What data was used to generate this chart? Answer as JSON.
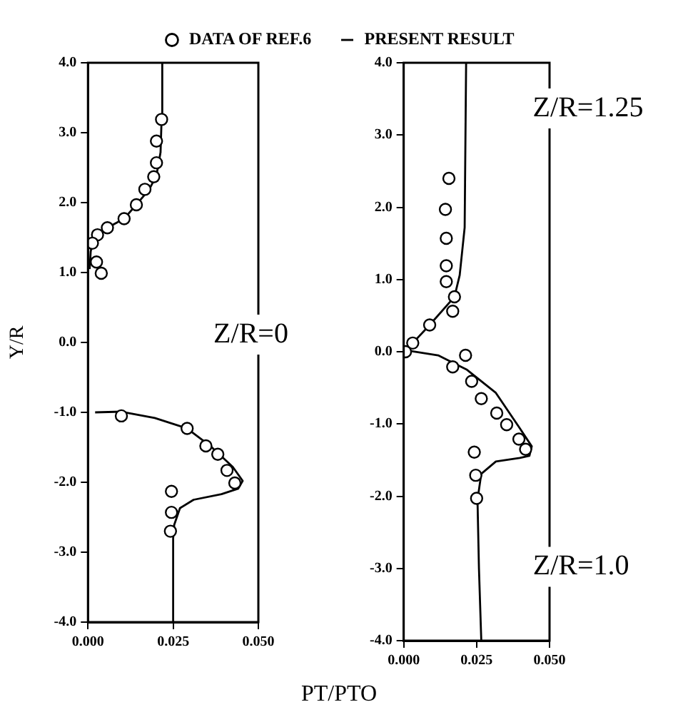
{
  "chart_data": [
    {
      "type": "scatter",
      "xlabel": "PT/PTO",
      "ylabel": "Y/R",
      "legend": "top",
      "annotations": [
        "Z/R=0"
      ],
      "xlim": [
        0,
        0.05
      ],
      "xticks": [
        {
          "value": 0,
          "label": "0.000"
        },
        {
          "value": 0.025,
          "label": "0.025"
        },
        {
          "value": 0.05,
          "label": "0.050"
        }
      ],
      "ylim": [
        -4,
        4
      ],
      "yticks": [
        {
          "value": 4,
          "label": "4.0"
        },
        {
          "value": 3,
          "label": "3.0"
        },
        {
          "value": 2,
          "label": "2.0"
        },
        {
          "value": 1,
          "label": "1.0"
        },
        {
          "value": 0,
          "label": "0.0"
        },
        {
          "value": -1,
          "label": "-1.0"
        },
        {
          "value": -2,
          "label": "-2.0"
        },
        {
          "value": -3,
          "label": "-3.0"
        },
        {
          "value": -4,
          "label": "-4.0"
        }
      ],
      "grid": false,
      "series": [
        {
          "type": "scatter",
          "name": "DATA OF REF.6",
          "color": "#000000",
          "marker": "circle",
          "x": [
            0.0216,
            0.0201,
            0.0201,
            0.0193,
            0.0167,
            0.0142,
            0.0106,
            0.0057,
            0.0028,
            0.0013,
            0.0025,
            0.0039,
            0.0098,
            0.0291,
            0.0346,
            0.0381,
            0.0408,
            0.0431,
            0.0245,
            0.0245,
            0.0242
          ],
          "values": [
            3.19,
            2.88,
            2.57,
            2.37,
            2.19,
            1.97,
            1.77,
            1.64,
            1.54,
            1.42,
            1.15,
            0.99,
            -1.05,
            -1.23,
            -1.48,
            -1.6,
            -1.83,
            -2.01,
            -2.13,
            -2.43,
            -2.7
          ]
        },
        {
          "type": "line",
          "name": "PRESENT RESULT",
          "color": "#000000",
          "marker": "none",
          "line_style": "solid",
          "x": [
            0.0005,
            0.0008,
            0.0013,
            0.0057,
            0.0106,
            0.0142,
            0.018,
            0.0201,
            0.0213,
            0.0216,
            0.0218
          ],
          "values": [
            1.05,
            1.3,
            1.42,
            1.64,
            1.77,
            1.97,
            2.19,
            2.39,
            2.72,
            3.19,
            4.0
          ]
        },
        {
          "type": "line",
          "color": "#000000",
          "marker": "none",
          "line_style": "solid",
          "x": [
            0.0021,
            0.0098,
            0.0196,
            0.0291,
            0.0359,
            0.0425,
            0.0454,
            0.0441,
            0.0392,
            0.031,
            0.027,
            0.0253,
            0.025,
            0.025
          ],
          "values": [
            -1.0,
            -0.99,
            -1.08,
            -1.23,
            -1.48,
            -1.78,
            -1.98,
            -2.09,
            -2.17,
            -2.25,
            -2.37,
            -2.61,
            -2.8,
            -4.0
          ]
        }
      ]
    },
    {
      "type": "scatter",
      "annotations": [
        "Z/R=1.25",
        "Z/R=1.0"
      ],
      "xlim": [
        0,
        0.05
      ],
      "xticks": [
        {
          "value": 0,
          "label": "0.000"
        },
        {
          "value": 0.025,
          "label": "0.025"
        },
        {
          "value": 0.05,
          "label": "0.050"
        }
      ],
      "ylim": [
        -4,
        4
      ],
      "yticks": [
        {
          "value": 4,
          "label": "4.0"
        },
        {
          "value": 3,
          "label": "3.0"
        },
        {
          "value": 2,
          "label": "2.0"
        },
        {
          "value": 1,
          "label": "1.0"
        },
        {
          "value": 0,
          "label": "0.0"
        },
        {
          "value": -1,
          "label": "-1.0"
        },
        {
          "value": -2,
          "label": "-2.0"
        },
        {
          "value": -3,
          "label": "-3.0"
        },
        {
          "value": -4,
          "label": "-4.0"
        }
      ],
      "grid": false,
      "series": [
        {
          "type": "scatter",
          "color": "#000000",
          "marker": "circle",
          "x": [
            0.0155,
            0.0143,
            0.0146,
            0.0146,
            0.0146,
            0.0174,
            0.0168,
            0.0089,
            0.0031,
            0.0006,
            0.0212,
            0.0168,
            0.0233,
            0.0266,
            0.0319,
            0.0353,
            0.0395,
            0.0418,
            0.0242,
            0.0247,
            0.025
          ],
          "values": [
            2.4,
            1.97,
            1.57,
            1.19,
            0.97,
            0.76,
            0.56,
            0.37,
            0.12,
            0.0,
            -0.05,
            -0.21,
            -0.41,
            -0.65,
            -0.85,
            -1.01,
            -1.21,
            -1.35,
            -1.39,
            -1.71,
            -2.03
          ]
        },
        {
          "type": "line",
          "color": "#000000",
          "marker": "none",
          "line_style": "solid",
          "x": [
            0.0,
            0.0031,
            0.0089,
            0.0174,
            0.0192,
            0.0209,
            0.0214
          ],
          "values": [
            0.0,
            0.12,
            0.37,
            0.76,
            1.06,
            1.72,
            4.0
          ]
        },
        {
          "type": "line",
          "color": "#000000",
          "marker": "none",
          "line_style": "solid",
          "x": [
            0.0006,
            0.0118,
            0.0217,
            0.0316,
            0.0398,
            0.0439,
            0.0431,
            0.0398,
            0.0316,
            0.0266,
            0.0253,
            0.0258,
            0.0266
          ],
          "values": [
            0.02,
            -0.05,
            -0.25,
            -0.57,
            -1.06,
            -1.31,
            -1.44,
            -1.47,
            -1.52,
            -1.69,
            -2.05,
            -3.0,
            -4.0
          ]
        }
      ]
    }
  ]
}
